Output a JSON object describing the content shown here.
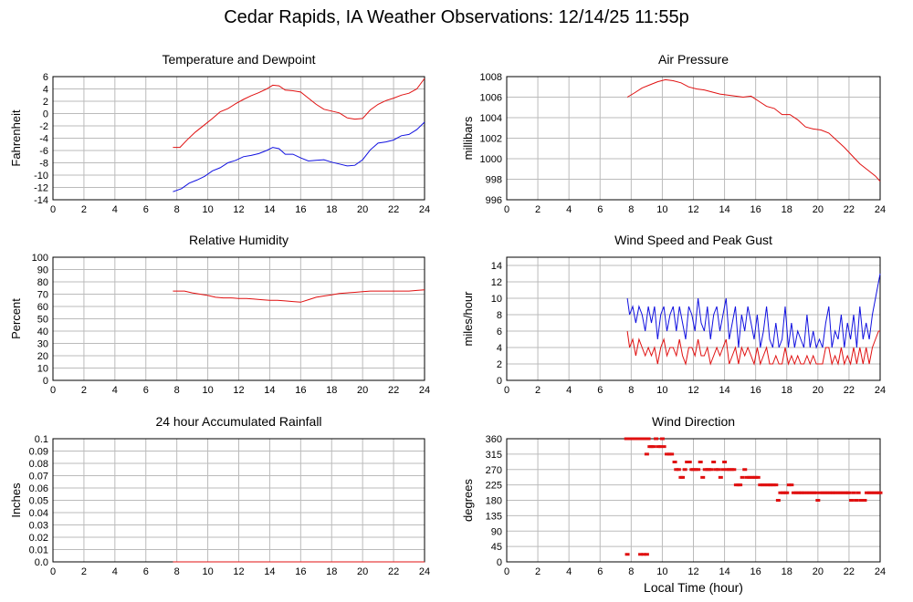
{
  "page": {
    "title": "Cedar Rapids, IA Weather Observations: 12/14/25 11:55p"
  },
  "colors": {
    "grid": "#bbbbbb",
    "frame": "#000000",
    "red": "#e01010",
    "blue": "#1010e0"
  },
  "chart_data": [
    {
      "id": "temp",
      "type": "line",
      "title": "Temperature and Dewpoint",
      "ylabel": "Fahrenheit",
      "xlabel": "",
      "xlim": [
        0,
        24
      ],
      "ylim": [
        -14,
        6
      ],
      "xticks": [
        0,
        2,
        4,
        6,
        8,
        10,
        12,
        14,
        16,
        18,
        20,
        22,
        24
      ],
      "yticks": [
        -14,
        -12,
        -10,
        -8,
        -6,
        -4,
        -2,
        0,
        2,
        4,
        6
      ],
      "grid": true,
      "series": [
        {
          "color": "red",
          "x": [
            7.75,
            8.2,
            8.7,
            9.2,
            9.8,
            10.3,
            10.8,
            11.3,
            11.8,
            12.3,
            12.8,
            13.3,
            13.8,
            14.2,
            14.6,
            15.0,
            15.5,
            16.0,
            16.5,
            17.0,
            17.5,
            18.0,
            18.5,
            19.0,
            19.5,
            20.0,
            20.5,
            21.0,
            21.5,
            22.0,
            22.5,
            23.0,
            23.5,
            24.0
          ],
          "y": [
            -5.5,
            -5.5,
            -4.2,
            -3.0,
            -1.8,
            -0.8,
            0.3,
            0.8,
            1.6,
            2.3,
            2.9,
            3.4,
            4.0,
            4.6,
            4.5,
            3.8,
            3.7,
            3.5,
            2.5,
            1.5,
            0.7,
            0.4,
            0.1,
            -0.7,
            -0.9,
            -0.8,
            0.6,
            1.5,
            2.1,
            2.5,
            3.0,
            3.3,
            4.0,
            5.7
          ]
        },
        {
          "color": "blue",
          "x": [
            7.75,
            8.3,
            8.8,
            9.3,
            9.8,
            10.3,
            10.8,
            11.3,
            11.8,
            12.3,
            12.8,
            13.3,
            13.8,
            14.2,
            14.6,
            15.0,
            15.5,
            16.0,
            16.5,
            17.0,
            17.5,
            18.0,
            18.5,
            19.0,
            19.5,
            20.0,
            20.5,
            21.0,
            21.5,
            22.0,
            22.5,
            23.0,
            23.5,
            24.0
          ],
          "y": [
            -12.7,
            -12.2,
            -11.3,
            -10.8,
            -10.2,
            -9.3,
            -8.8,
            -8.0,
            -7.6,
            -7.0,
            -6.8,
            -6.5,
            -6.0,
            -5.5,
            -5.7,
            -6.6,
            -6.6,
            -7.2,
            -7.7,
            -7.6,
            -7.5,
            -7.9,
            -8.2,
            -8.5,
            -8.4,
            -7.5,
            -5.9,
            -4.8,
            -4.6,
            -4.3,
            -3.6,
            -3.4,
            -2.6,
            -1.4
          ]
        }
      ]
    },
    {
      "id": "pressure",
      "type": "line",
      "title": "Air Pressure",
      "ylabel": "millibars",
      "xlabel": "",
      "xlim": [
        0,
        24
      ],
      "ylim": [
        996,
        1008
      ],
      "xticks": [
        0,
        2,
        4,
        6,
        8,
        10,
        12,
        14,
        16,
        18,
        20,
        22,
        24
      ],
      "yticks": [
        996,
        998,
        1000,
        1002,
        1004,
        1006,
        1008
      ],
      "grid": true,
      "series": [
        {
          "color": "red",
          "x": [
            7.75,
            8.2,
            8.7,
            9.2,
            9.7,
            10.2,
            10.7,
            11.2,
            11.7,
            12.2,
            12.7,
            13.2,
            13.7,
            14.2,
            14.7,
            15.2,
            15.7,
            16.2,
            16.7,
            17.2,
            17.7,
            18.2,
            18.7,
            19.2,
            19.7,
            20.2,
            20.7,
            21.2,
            21.7,
            22.2,
            22.7,
            23.2,
            23.7,
            24.0
          ],
          "y": [
            1006.0,
            1006.4,
            1006.9,
            1007.2,
            1007.5,
            1007.7,
            1007.6,
            1007.4,
            1007.0,
            1006.8,
            1006.7,
            1006.5,
            1006.3,
            1006.2,
            1006.1,
            1006.0,
            1006.1,
            1005.6,
            1005.1,
            1004.9,
            1004.3,
            1004.3,
            1003.8,
            1003.1,
            1002.9,
            1002.8,
            1002.5,
            1001.8,
            1001.1,
            1000.3,
            999.5,
            998.9,
            998.3,
            997.8
          ]
        }
      ]
    },
    {
      "id": "humidity",
      "type": "line",
      "title": "Relative Humidity",
      "ylabel": "Percent",
      "xlabel": "",
      "xlim": [
        0,
        24
      ],
      "ylim": [
        0,
        100
      ],
      "xticks": [
        0,
        2,
        4,
        6,
        8,
        10,
        12,
        14,
        16,
        18,
        20,
        22,
        24
      ],
      "yticks": [
        0,
        10,
        20,
        30,
        40,
        50,
        60,
        70,
        80,
        90,
        100
      ],
      "grid": true,
      "series": [
        {
          "color": "red",
          "x": [
            7.75,
            8.5,
            9.0,
            9.5,
            10.0,
            10.5,
            11.0,
            11.5,
            12.0,
            12.5,
            13.0,
            13.5,
            14.0,
            14.5,
            15.0,
            15.5,
            16.0,
            16.5,
            17.0,
            17.5,
            18.0,
            18.5,
            19.0,
            19.5,
            20.0,
            20.5,
            21.0,
            21.5,
            22.0,
            22.5,
            23.0,
            23.5,
            24.0
          ],
          "y": [
            72.5,
            72.5,
            71.0,
            70.0,
            69.0,
            67.5,
            67.0,
            67.0,
            66.5,
            66.5,
            66.0,
            65.5,
            65.0,
            65.0,
            64.5,
            64.0,
            63.5,
            65.5,
            67.5,
            68.5,
            69.5,
            70.5,
            71.0,
            71.5,
            72.0,
            72.5,
            72.5,
            72.5,
            72.5,
            72.5,
            72.5,
            73.0,
            73.5
          ]
        }
      ]
    },
    {
      "id": "wind",
      "type": "line",
      "title": "Wind Speed and Peak Gust",
      "ylabel": "miles/hour",
      "xlabel": "",
      "xlim": [
        0,
        24
      ],
      "ylim": [
        0,
        15
      ],
      "xticks": [
        0,
        2,
        4,
        6,
        8,
        10,
        12,
        14,
        16,
        18,
        20,
        22,
        24
      ],
      "yticks": [
        0,
        2,
        4,
        6,
        8,
        10,
        12,
        14
      ],
      "grid": true,
      "series": [
        {
          "color": "blue",
          "x": [
            7.75,
            7.9,
            8.1,
            8.3,
            8.5,
            8.7,
            8.9,
            9.1,
            9.3,
            9.5,
            9.7,
            9.9,
            10.1,
            10.3,
            10.5,
            10.7,
            10.9,
            11.1,
            11.3,
            11.5,
            11.7,
            11.9,
            12.1,
            12.3,
            12.5,
            12.7,
            12.9,
            13.1,
            13.3,
            13.5,
            13.7,
            13.9,
            14.1,
            14.3,
            14.5,
            14.7,
            14.9,
            15.1,
            15.3,
            15.5,
            15.7,
            15.9,
            16.1,
            16.3,
            16.5,
            16.7,
            16.9,
            17.1,
            17.3,
            17.5,
            17.7,
            17.9,
            18.1,
            18.3,
            18.5,
            18.7,
            18.9,
            19.1,
            19.3,
            19.5,
            19.7,
            19.9,
            20.1,
            20.3,
            20.5,
            20.7,
            20.9,
            21.1,
            21.3,
            21.5,
            21.7,
            21.9,
            22.1,
            22.3,
            22.5,
            22.7,
            22.9,
            23.1,
            23.3,
            23.5,
            23.7,
            23.9,
            24.0
          ],
          "y": [
            10,
            8,
            9,
            7,
            9,
            8,
            6,
            9,
            7,
            9,
            5,
            8,
            9,
            6,
            8,
            9,
            6,
            9,
            7,
            5,
            9,
            8,
            6,
            10,
            7,
            6,
            9,
            5,
            8,
            9,
            6,
            8,
            10,
            5,
            7,
            9,
            4,
            8,
            6,
            9,
            7,
            5,
            8,
            4,
            6,
            9,
            5,
            4,
            7,
            4,
            5,
            9,
            4,
            7,
            4,
            6,
            5,
            4,
            8,
            4,
            6,
            4,
            5,
            4,
            7,
            9,
            4,
            6,
            5,
            8,
            4,
            7,
            5,
            8,
            4,
            9,
            5,
            7,
            5,
            8,
            10,
            12,
            13
          ]
        },
        {
          "color": "red",
          "x": [
            7.75,
            7.9,
            8.1,
            8.3,
            8.5,
            8.7,
            8.9,
            9.1,
            9.3,
            9.5,
            9.7,
            9.9,
            10.1,
            10.3,
            10.5,
            10.7,
            10.9,
            11.1,
            11.3,
            11.5,
            11.7,
            11.9,
            12.1,
            12.3,
            12.5,
            12.7,
            12.9,
            13.1,
            13.3,
            13.5,
            13.7,
            13.9,
            14.1,
            14.3,
            14.5,
            14.7,
            14.9,
            15.1,
            15.3,
            15.5,
            15.7,
            15.9,
            16.1,
            16.3,
            16.5,
            16.7,
            16.9,
            17.1,
            17.3,
            17.5,
            17.7,
            17.9,
            18.1,
            18.3,
            18.5,
            18.7,
            18.9,
            19.1,
            19.3,
            19.5,
            19.7,
            19.9,
            20.1,
            20.3,
            20.5,
            20.7,
            20.9,
            21.1,
            21.3,
            21.5,
            21.7,
            21.9,
            22.1,
            22.3,
            22.5,
            22.7,
            22.9,
            23.1,
            23.3,
            23.5,
            23.7,
            23.9,
            24.0
          ],
          "y": [
            6,
            4,
            5,
            3,
            5,
            4,
            3,
            4,
            3,
            4,
            2,
            4,
            5,
            3,
            4,
            4,
            3,
            5,
            3,
            2,
            4,
            4,
            3,
            5,
            3,
            3,
            4,
            2,
            3,
            4,
            3,
            4,
            5,
            2,
            3,
            4,
            2,
            4,
            3,
            4,
            3,
            2,
            4,
            2,
            3,
            4,
            2,
            2,
            3,
            2,
            2,
            4,
            2,
            3,
            2,
            3,
            2,
            2,
            3,
            2,
            3,
            2,
            2,
            2,
            4,
            4,
            2,
            3,
            2,
            4,
            2,
            3,
            2,
            4,
            2,
            4,
            2,
            4,
            2,
            4,
            5,
            6,
            6
          ]
        }
      ]
    },
    {
      "id": "rain",
      "type": "line",
      "title": "24 hour Accumulated Rainfall",
      "ylabel": "Inches",
      "xlabel": "",
      "xlim": [
        0,
        24
      ],
      "ylim": [
        0,
        0.1
      ],
      "xticks": [
        0,
        2,
        4,
        6,
        8,
        10,
        12,
        14,
        16,
        18,
        20,
        22,
        24
      ],
      "yticks": [
        "0.0",
        "0.01",
        "0.02",
        "0.03",
        "0.04",
        "0.05",
        "0.06",
        "0.07",
        "0.08",
        "0.09",
        "0.1"
      ],
      "grid": true,
      "series": [
        {
          "color": "red",
          "x": [
            7.75,
            24.0
          ],
          "y": [
            0,
            0
          ]
        }
      ]
    },
    {
      "id": "direction",
      "type": "scatter",
      "title": "Wind Direction",
      "ylabel": "degrees",
      "xlabel": "Local Time (hour)",
      "xlim": [
        0,
        24
      ],
      "ylim": [
        0,
        360
      ],
      "xticks": [
        0,
        2,
        4,
        6,
        8,
        10,
        12,
        14,
        16,
        18,
        20,
        22,
        24
      ],
      "yticks": [
        0,
        45,
        90,
        135,
        180,
        225,
        270,
        315,
        360
      ],
      "grid": true,
      "series": [
        {
          "color": "red",
          "x": [
            7.7,
            7.85,
            8.0,
            8.15,
            8.3,
            8.5,
            8.7,
            8.8,
            8.9,
            9.0,
            9.1,
            9.2,
            9.3,
            9.45,
            9.6,
            9.75,
            9.9,
            10.0,
            10.1,
            10.3,
            10.45,
            10.6,
            10.8,
            10.9,
            11.05,
            11.2,
            11.3,
            11.45,
            11.6,
            11.75,
            11.9,
            12.0,
            12.15,
            12.3,
            12.45,
            12.6,
            12.75,
            12.9,
            13.0,
            13.15,
            13.3,
            13.45,
            13.6,
            13.75,
            13.9,
            14.0,
            14.15,
            14.3,
            14.45,
            14.6,
            14.75,
            14.9,
            15.0,
            15.15,
            15.3,
            15.45,
            15.6,
            15.75,
            15.9,
            16.0,
            16.15,
            16.3,
            16.45,
            16.6,
            16.75,
            16.9,
            17.0,
            17.15,
            17.3,
            17.45,
            17.6,
            17.75,
            17.9,
            18.0,
            18.15,
            18.3,
            18.45,
            18.6,
            18.75,
            18.9,
            19.0,
            19.15,
            19.3,
            19.45,
            19.6,
            19.75,
            19.9,
            20.0,
            20.15,
            20.3,
            20.45,
            20.6,
            20.75,
            20.9,
            21.0,
            21.15,
            21.3,
            21.45,
            21.6,
            21.75,
            21.9,
            22.0,
            22.15,
            22.3,
            22.45,
            22.6,
            22.75,
            22.9,
            23.0,
            23.15,
            23.3,
            23.45,
            23.6,
            23.75,
            23.9,
            24.0,
            7.75,
            8.6,
            8.8,
            9.0
          ],
          "y": [
            360,
            360,
            360,
            360,
            360,
            360,
            360,
            360,
            360,
            315,
            360,
            337,
            337,
            337,
            360,
            337,
            337,
            360,
            337,
            315,
            315,
            315,
            292,
            270,
            270,
            247,
            247,
            270,
            292,
            292,
            270,
            270,
            270,
            270,
            292,
            247,
            270,
            270,
            270,
            270,
            292,
            270,
            270,
            247,
            270,
            292,
            270,
            270,
            270,
            270,
            225,
            225,
            225,
            247,
            270,
            247,
            247,
            247,
            247,
            247,
            247,
            225,
            225,
            225,
            225,
            225,
            225,
            225,
            225,
            180,
            202,
            202,
            202,
            202,
            225,
            225,
            202,
            202,
            202,
            202,
            202,
            202,
            202,
            202,
            202,
            202,
            202,
            180,
            202,
            202,
            202,
            202,
            202,
            202,
            202,
            202,
            202,
            202,
            202,
            202,
            202,
            202,
            180,
            202,
            180,
            202,
            180,
            180,
            180,
            202,
            202,
            202,
            202,
            202,
            202,
            202,
            22,
            22,
            22,
            22
          ]
        }
      ]
    }
  ]
}
